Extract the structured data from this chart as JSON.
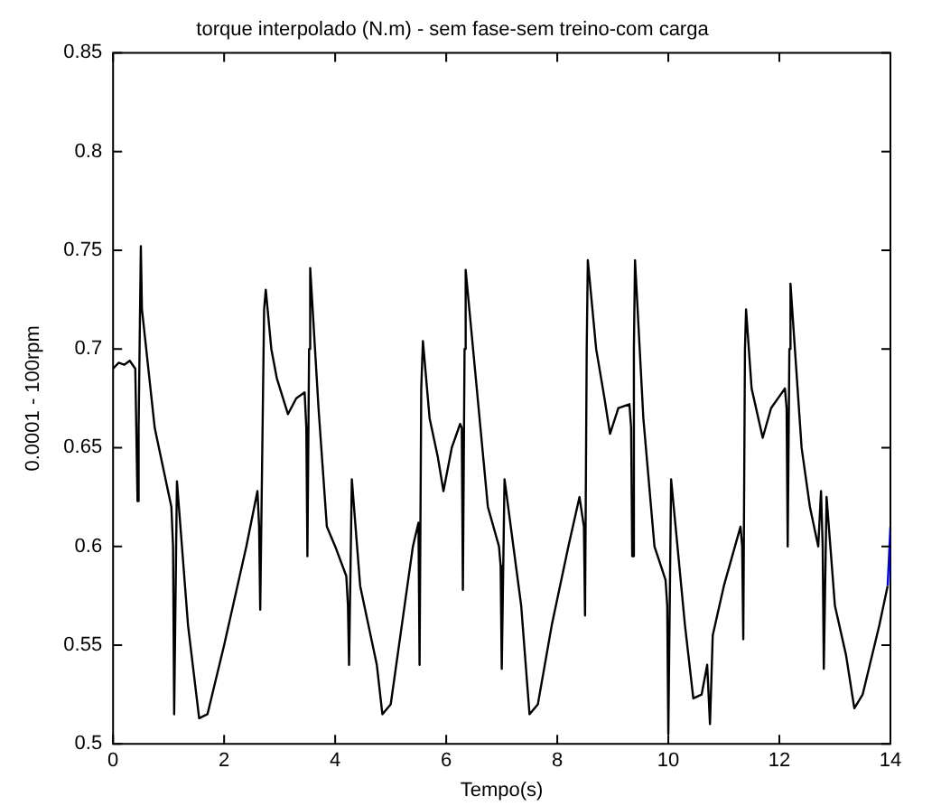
{
  "chart_data": {
    "type": "line",
    "title": "torque interpolado (N.m) - sem fase-sem treino-com carga",
    "xlabel": "Tempo(s)",
    "ylabel": "0.0001 - 100rpm",
    "xlim": [
      0,
      14
    ],
    "xticks": [
      0,
      2,
      4,
      6,
      8,
      10,
      12,
      14
    ],
    "ylim": [
      0.5,
      0.85
    ],
    "yticks": [
      0.5,
      0.55,
      0.6,
      0.65,
      0.7,
      0.75,
      0.8,
      0.85
    ],
    "grid": false,
    "legend": false,
    "marker": "none",
    "line_style": "solid",
    "series": [
      {
        "color": "#000000",
        "x": [
          0,
          0.1,
          0.2,
          0.3,
          0.4,
          0.44,
          0.46,
          0.5,
          0.52,
          0.75,
          0.9,
          1.05,
          1.08,
          1.1,
          1.15,
          1.35,
          1.55,
          1.7,
          2.0,
          2.4,
          2.6,
          2.63,
          2.65,
          2.72,
          2.75,
          2.85,
          2.95,
          3.15,
          3.3,
          3.45,
          3.48,
          3.5,
          3.53,
          3.55,
          3.7,
          3.85,
          4.0,
          4.2,
          4.23,
          4.25,
          4.3,
          4.45,
          4.75,
          4.85,
          5.0,
          5.2,
          5.4,
          5.5,
          5.52,
          5.55,
          5.58,
          5.7,
          5.85,
          5.95,
          6.1,
          6.25,
          6.28,
          6.3,
          6.33,
          6.35,
          6.55,
          6.75,
          6.95,
          6.98,
          7.0,
          7.05,
          7.35,
          7.5,
          7.65,
          7.9,
          8.2,
          8.4,
          8.48,
          8.5,
          8.53,
          8.55,
          8.7,
          8.85,
          8.95,
          9.1,
          9.3,
          9.33,
          9.35,
          9.38,
          9.4,
          9.55,
          9.75,
          9.95,
          9.98,
          10.0,
          10.05,
          10.3,
          10.45,
          10.6,
          10.7,
          10.75,
          10.8,
          11.0,
          11.3,
          11.33,
          11.35,
          11.38,
          11.4,
          11.5,
          11.7,
          11.85,
          12.1,
          12.13,
          12.15,
          12.18,
          12.2,
          12.4,
          12.55,
          12.7,
          12.75,
          12.78,
          12.8,
          12.85,
          13.0,
          13.2,
          13.35,
          13.5,
          13.8,
          13.95
        ],
        "values": [
          0.69,
          0.693,
          0.692,
          0.694,
          0.69,
          0.623,
          0.66,
          0.752,
          0.72,
          0.66,
          0.64,
          0.62,
          0.6,
          0.515,
          0.633,
          0.56,
          0.513,
          0.515,
          0.55,
          0.6,
          0.628,
          0.61,
          0.568,
          0.72,
          0.73,
          0.7,
          0.685,
          0.667,
          0.675,
          0.678,
          0.66,
          0.595,
          0.7,
          0.741,
          0.67,
          0.61,
          0.6,
          0.585,
          0.57,
          0.54,
          0.634,
          0.58,
          0.54,
          0.515,
          0.52,
          0.56,
          0.6,
          0.612,
          0.54,
          0.68,
          0.704,
          0.665,
          0.645,
          0.628,
          0.65,
          0.662,
          0.66,
          0.578,
          0.7,
          0.74,
          0.68,
          0.62,
          0.6,
          0.59,
          0.538,
          0.634,
          0.57,
          0.515,
          0.52,
          0.56,
          0.6,
          0.625,
          0.61,
          0.565,
          0.7,
          0.745,
          0.7,
          0.675,
          0.657,
          0.67,
          0.672,
          0.66,
          0.595,
          0.7,
          0.745,
          0.665,
          0.6,
          0.583,
          0.57,
          0.505,
          0.634,
          0.56,
          0.523,
          0.525,
          0.54,
          0.51,
          0.555,
          0.58,
          0.61,
          0.6,
          0.553,
          0.7,
          0.72,
          0.68,
          0.655,
          0.67,
          0.68,
          0.67,
          0.6,
          0.7,
          0.733,
          0.65,
          0.62,
          0.6,
          0.628,
          0.6,
          0.538,
          0.625,
          0.57,
          0.545,
          0.518,
          0.525,
          0.56,
          0.58
        ]
      },
      {
        "color": "#0000ff",
        "x": [
          13.95,
          14
        ],
        "values": [
          0.58,
          0.61
        ]
      }
    ]
  }
}
